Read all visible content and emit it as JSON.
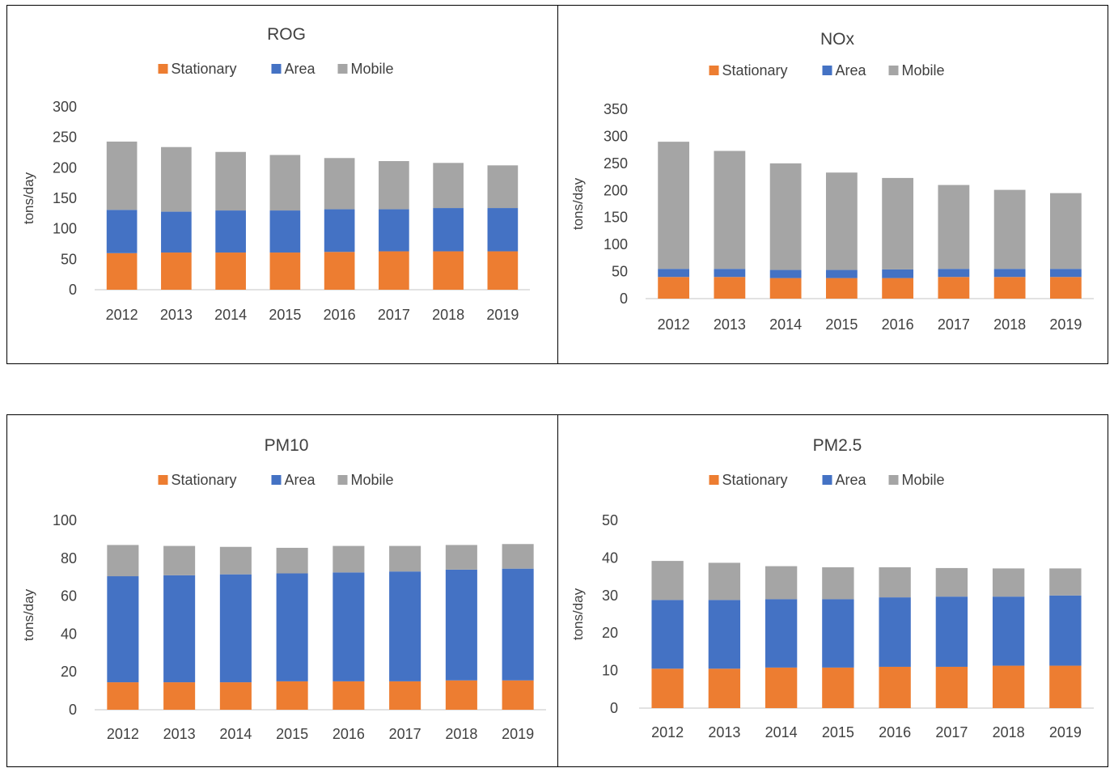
{
  "colors": {
    "Stationary": "#ED7D31",
    "Area": "#4472C4",
    "Mobile": "#A5A5A5",
    "text": "#404040",
    "axis": "#D9D9D9"
  },
  "chart_data": [
    {
      "type": "bar",
      "stacked": true,
      "title": "ROG",
      "ylabel": "tons/day",
      "xlabel": "",
      "legend_position": "top",
      "ylim": [
        0,
        300
      ],
      "yticks": [
        0,
        50,
        100,
        150,
        200,
        250,
        300
      ],
      "categories": [
        "2012",
        "2013",
        "2014",
        "2015",
        "2016",
        "2017",
        "2018",
        "2019"
      ],
      "series": [
        {
          "name": "Stationary",
          "values": [
            60,
            61,
            61,
            61,
            62,
            63,
            63,
            63
          ]
        },
        {
          "name": "Area",
          "values": [
            71,
            67,
            69,
            69,
            70,
            69,
            71,
            71
          ]
        },
        {
          "name": "Mobile",
          "values": [
            112,
            106,
            96,
            91,
            84,
            79,
            74,
            70
          ]
        }
      ]
    },
    {
      "type": "bar",
      "stacked": true,
      "title": "NOx",
      "ylabel": "tons/day",
      "xlabel": "",
      "legend_position": "top",
      "ylim": [
        0,
        350
      ],
      "yticks": [
        0,
        50,
        100,
        150,
        200,
        250,
        300,
        350
      ],
      "categories": [
        "2012",
        "2013",
        "2014",
        "2015",
        "2016",
        "2017",
        "2018",
        "2019"
      ],
      "series": [
        {
          "name": "Stationary",
          "values": [
            40,
            40,
            38,
            38,
            38,
            40,
            40,
            40
          ]
        },
        {
          "name": "Area",
          "values": [
            15,
            15,
            15,
            15,
            16,
            15,
            15,
            15
          ]
        },
        {
          "name": "Mobile",
          "values": [
            235,
            218,
            197,
            180,
            169,
            155,
            146,
            140
          ]
        }
      ]
    },
    {
      "type": "bar",
      "stacked": true,
      "title": "PM10",
      "ylabel": "tons/day",
      "xlabel": "",
      "legend_position": "top",
      "ylim": [
        0,
        100
      ],
      "yticks": [
        0,
        20,
        40,
        60,
        80,
        100
      ],
      "categories": [
        "2012",
        "2013",
        "2014",
        "2015",
        "2016",
        "2017",
        "2018",
        "2019"
      ],
      "series": [
        {
          "name": "Stationary",
          "values": [
            14.5,
            14.5,
            14.5,
            15,
            15,
            15,
            15.5,
            15.5
          ]
        },
        {
          "name": "Area",
          "values": [
            56,
            56.5,
            57,
            57,
            57.5,
            58,
            58.5,
            59
          ]
        },
        {
          "name": "Mobile",
          "values": [
            16.5,
            15.5,
            14.5,
            13.5,
            14,
            13.5,
            13,
            13
          ]
        }
      ]
    },
    {
      "type": "bar",
      "stacked": true,
      "title": "PM2.5",
      "ylabel": "tons/day",
      "xlabel": "",
      "legend_position": "top",
      "ylim": [
        0,
        50
      ],
      "yticks": [
        0,
        10,
        20,
        30,
        40,
        50
      ],
      "categories": [
        "2012",
        "2013",
        "2014",
        "2015",
        "2016",
        "2017",
        "2018",
        "2019"
      ],
      "series": [
        {
          "name": "Stationary",
          "values": [
            10.5,
            10.5,
            10.8,
            10.8,
            11,
            11,
            11.3,
            11.3
          ]
        },
        {
          "name": "Area",
          "values": [
            18.3,
            18.3,
            18.2,
            18.2,
            18.5,
            18.7,
            18.4,
            18.7
          ]
        },
        {
          "name": "Mobile",
          "values": [
            10.4,
            9.9,
            8.8,
            8.5,
            8,
            7.6,
            7.5,
            7.2
          ]
        }
      ]
    }
  ]
}
